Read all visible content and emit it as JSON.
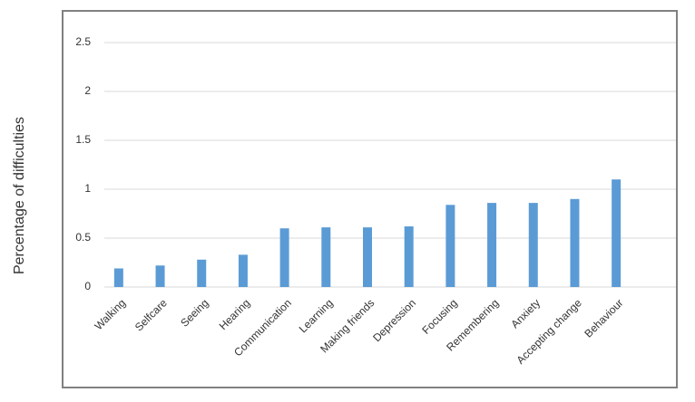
{
  "chart_data": {
    "type": "bar",
    "ylabel": "Percentage of difficulties",
    "categories": [
      "Walking",
      "Selfcare",
      "Seeing",
      "Hearing",
      "Communication",
      "Learning",
      "Making friends",
      "Depression",
      "Focusing",
      "Remembering",
      "Anxiety",
      "Accepting change",
      "Behaviour"
    ],
    "values": [
      0.19,
      0.22,
      0.28,
      0.33,
      0.6,
      0.61,
      0.61,
      0.62,
      0.84,
      0.86,
      0.86,
      0.9,
      1.1
    ],
    "color": "#5b9bd5",
    "ylim": [
      0,
      2.5
    ],
    "yticks": [
      0,
      0.5,
      1,
      1.5,
      2,
      2.5
    ],
    "grid": true
  }
}
